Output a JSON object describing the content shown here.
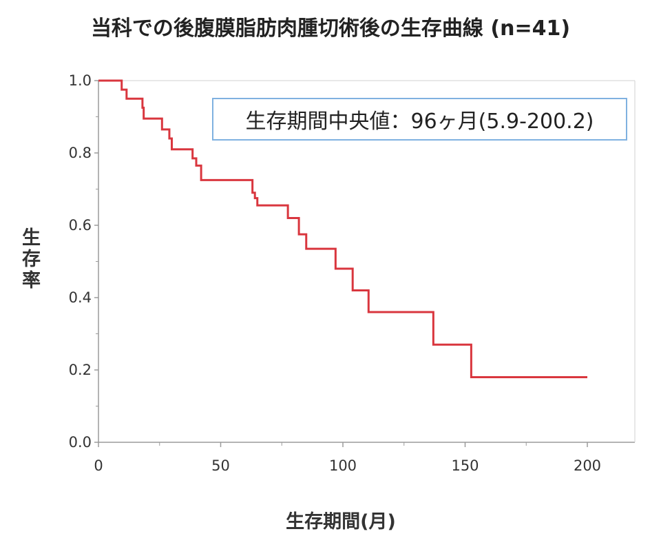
{
  "chart_data": {
    "type": "line",
    "step": true,
    "title": "当科での後腹膜脂肪肉腫切術後の生存曲線 (n=41)",
    "xlabel": "生存期間(月)",
    "ylabel": "生存率",
    "xlim": [
      0,
      220
    ],
    "ylim": [
      0.0,
      1.0
    ],
    "x_ticks": [
      0,
      50,
      100,
      150,
      200
    ],
    "x_tick_labels": [
      "0",
      "50",
      "100",
      "150",
      "200"
    ],
    "y_ticks": [
      0.0,
      0.2,
      0.4,
      0.6,
      0.8,
      1.0
    ],
    "y_tick_labels": [
      "0.0",
      "0.2",
      "0.4",
      "0.6",
      "0.8",
      "1.0"
    ],
    "grid": false,
    "annotation": "生存期間中央値：96ヶ月(5.9-200.2)",
    "series": [
      {
        "color": "#d9363e",
        "x": [
          0,
          9.5,
          11.5,
          18,
          18.5,
          26,
          29,
          30,
          38.5,
          40,
          42,
          63,
          64,
          65,
          77.5,
          82,
          85,
          97,
          104,
          110.5,
          137,
          152.5,
          200
        ],
        "y": [
          1.0,
          0.975,
          0.95,
          0.925,
          0.895,
          0.865,
          0.84,
          0.81,
          0.785,
          0.765,
          0.725,
          0.69,
          0.675,
          0.655,
          0.62,
          0.575,
          0.535,
          0.48,
          0.42,
          0.36,
          0.27,
          0.18,
          0.18
        ]
      }
    ]
  },
  "colors": {
    "axis": "#9a9a9a",
    "line": "#d9363e",
    "annotation_border": "#7fb1e0"
  }
}
